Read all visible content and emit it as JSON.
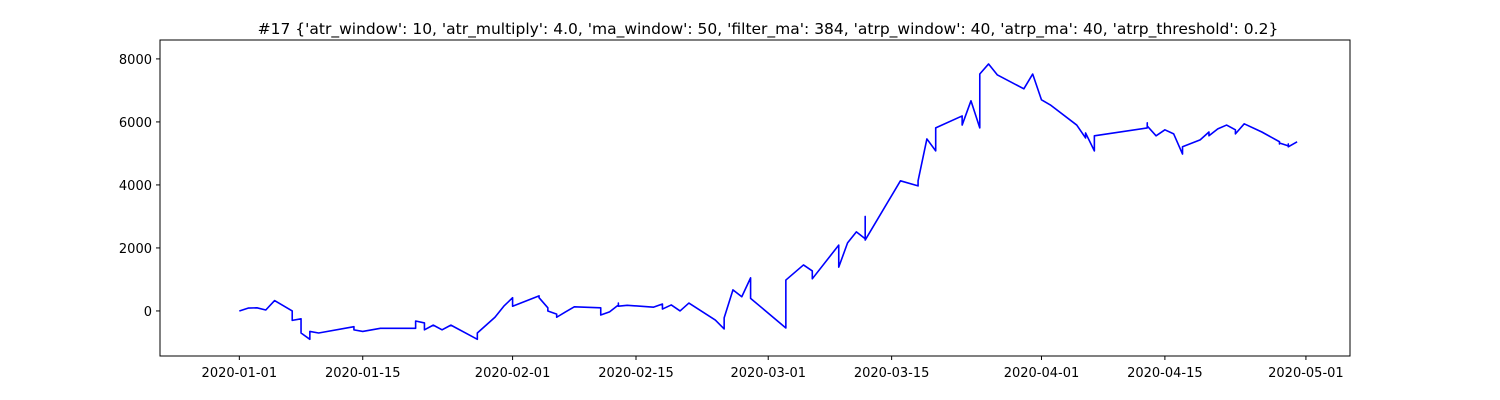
{
  "chart_data": {
    "type": "line",
    "title": "#17 {'atr_window': 10, 'atr_multiply': 4.0, 'ma_window': 50, 'filter_ma': 384, 'atrp_window': 40, 'atrp_ma': 40, 'atrp_threshold': 0.2}",
    "color": "#0000ff",
    "x": [
      "2020-01-01",
      "2020-01-02",
      "2020-01-03",
      "2020-01-04",
      "2020-01-05",
      "2020-01-07",
      "2020-01-07",
      "2020-01-08",
      "2020-01-08",
      "2020-01-09",
      "2020-01-09",
      "2020-01-10",
      "2020-01-10",
      "2020-01-14",
      "2020-01-14",
      "2020-01-15",
      "2020-01-17",
      "2020-01-21",
      "2020-01-21",
      "2020-01-22",
      "2020-01-22",
      "2020-01-23",
      "2020-01-24",
      "2020-01-25",
      "2020-01-27",
      "2020-01-28",
      "2020-01-28",
      "2020-01-30",
      "2020-01-31",
      "2020-02-01",
      "2020-02-01",
      "2020-02-04",
      "2020-02-04",
      "2020-02-05",
      "2020-02-05",
      "2020-02-06",
      "2020-02-06",
      "2020-02-07",
      "2020-02-08",
      "2020-02-11",
      "2020-02-11",
      "2020-02-12",
      "2020-02-13",
      "2020-02-13",
      "2020-02-13",
      "2020-02-14",
      "2020-02-17",
      "2020-02-18",
      "2020-02-18",
      "2020-02-19",
      "2020-02-20",
      "2020-02-21",
      "2020-02-24",
      "2020-02-25",
      "2020-02-25",
      "2020-02-26",
      "2020-02-27",
      "2020-02-28",
      "2020-02-28",
      "2020-03-03",
      "2020-03-03",
      "2020-03-05",
      "2020-03-06",
      "2020-03-06",
      "2020-03-09",
      "2020-03-09",
      "2020-03-10",
      "2020-03-11",
      "2020-03-12",
      "2020-03-12",
      "2020-03-12",
      "2020-03-16",
      "2020-03-18",
      "2020-03-18",
      "2020-03-19",
      "2020-03-20",
      "2020-03-20",
      "2020-03-23",
      "2020-03-23",
      "2020-03-24",
      "2020-03-25",
      "2020-03-25",
      "2020-03-25",
      "2020-03-26",
      "2020-03-27",
      "2020-03-30",
      "2020-03-31",
      "2020-04-01",
      "2020-04-02",
      "2020-04-05",
      "2020-04-06",
      "2020-04-06",
      "2020-04-07",
      "2020-04-07",
      "2020-04-13",
      "2020-04-13",
      "2020-04-13",
      "2020-04-14",
      "2020-04-15",
      "2020-04-16",
      "2020-04-17",
      "2020-04-17",
      "2020-04-19",
      "2020-04-20",
      "2020-04-20",
      "2020-04-21",
      "2020-04-22",
      "2020-04-23",
      "2020-04-23",
      "2020-04-24",
      "2020-04-26",
      "2020-04-28",
      "2020-04-28",
      "2020-04-28",
      "2020-04-29",
      "2020-04-29",
      "2020-04-29",
      "2020-04-30"
    ],
    "values": [
      0,
      90,
      100,
      30,
      330,
      0,
      -300,
      -250,
      -700,
      -900,
      -650,
      -700,
      -700,
      -500,
      -600,
      -650,
      -550,
      -550,
      -320,
      -380,
      -600,
      -450,
      -600,
      -450,
      -750,
      -900,
      -700,
      -200,
      150,
      420,
      150,
      480,
      420,
      100,
      0,
      -100,
      -200,
      -30,
      130,
      100,
      -130,
      -30,
      190,
      250,
      150,
      180,
      120,
      220,
      60,
      190,
      0,
      250,
      -290,
      -570,
      -220,
      670,
      450,
      1050,
      400,
      -540,
      980,
      1460,
      1270,
      1020,
      2090,
      1390,
      2160,
      2510,
      2290,
      3000,
      2250,
      4130,
      3970,
      4130,
      5460,
      5080,
      5810,
      6190,
      5900,
      6670,
      5810,
      6760,
      7520,
      7840,
      7490,
      7050,
      7520,
      6700,
      6540,
      5900,
      5490,
      5650,
      5080,
      5560,
      5810,
      5970,
      5870,
      5560,
      5750,
      5620,
      4980,
      5210,
      5430,
      5680,
      5560,
      5780,
      5900,
      5750,
      5620,
      5940,
      5680,
      5370,
      5300,
      5330,
      5240,
      5300,
      5210,
      5370
    ],
    "xlim": [
      "2019-12-23",
      "2020-05-06"
    ],
    "xticks": [
      "2020-01-01",
      "2020-01-15",
      "2020-02-01",
      "2020-02-15",
      "2020-03-01",
      "2020-03-15",
      "2020-04-01",
      "2020-04-15",
      "2020-05-01"
    ],
    "ylim": [
      -1430,
      8600
    ],
    "yticks": [
      0,
      2000,
      4000,
      6000,
      8000
    ],
    "grid": false
  }
}
